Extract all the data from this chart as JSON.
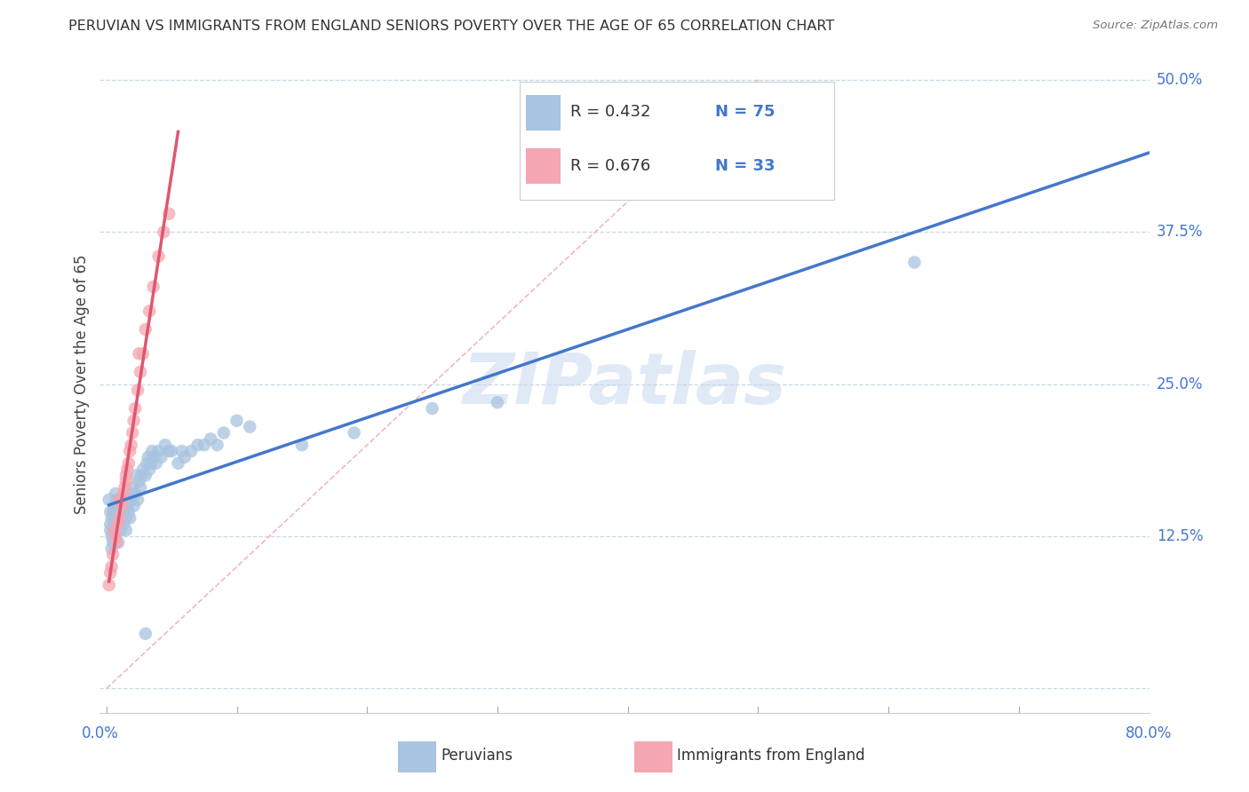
{
  "title": "PERUVIAN VS IMMIGRANTS FROM ENGLAND SENIORS POVERTY OVER THE AGE OF 65 CORRELATION CHART",
  "source": "Source: ZipAtlas.com",
  "ylabel": "Seniors Poverty Over the Age of 65",
  "xlim": [
    0.0,
    0.8
  ],
  "ylim": [
    -0.02,
    0.52
  ],
  "yticks": [
    0.0,
    0.125,
    0.25,
    0.375,
    0.5
  ],
  "ytick_labels": [
    "",
    "12.5%",
    "25.0%",
    "37.5%",
    "50.0%"
  ],
  "peruvian_color": "#a8c4e0",
  "england_color": "#f4a7b0",
  "peruvian_line_color": "#4477cc",
  "england_line_color": "#e05570",
  "diagonal_color": "#f0b0b8",
  "R_peruvian": 0.432,
  "N_peruvian": 75,
  "R_england": 0.676,
  "N_england": 33,
  "watermark": "ZIPatlas",
  "legend_peruvians": "Peruvians",
  "legend_england": "Immigrants from England",
  "peruvian_x": [
    0.002,
    0.003,
    0.003,
    0.003,
    0.004,
    0.004,
    0.004,
    0.005,
    0.005,
    0.005,
    0.006,
    0.006,
    0.007,
    0.007,
    0.007,
    0.008,
    0.008,
    0.008,
    0.009,
    0.009,
    0.01,
    0.01,
    0.011,
    0.011,
    0.012,
    0.012,
    0.013,
    0.013,
    0.014,
    0.015,
    0.015,
    0.016,
    0.017,
    0.018,
    0.018,
    0.019,
    0.02,
    0.021,
    0.022,
    0.023,
    0.024,
    0.025,
    0.026,
    0.027,
    0.028,
    0.03,
    0.031,
    0.032,
    0.033,
    0.034,
    0.035,
    0.036,
    0.038,
    0.04,
    0.042,
    0.045,
    0.048,
    0.05,
    0.055,
    0.058,
    0.06,
    0.065,
    0.07,
    0.075,
    0.08,
    0.085,
    0.09,
    0.1,
    0.11,
    0.15,
    0.19,
    0.25,
    0.3,
    0.62,
    0.03
  ],
  "peruvian_y": [
    0.155,
    0.135,
    0.145,
    0.13,
    0.14,
    0.125,
    0.115,
    0.13,
    0.12,
    0.145,
    0.135,
    0.15,
    0.14,
    0.125,
    0.16,
    0.145,
    0.135,
    0.155,
    0.12,
    0.14,
    0.155,
    0.135,
    0.145,
    0.13,
    0.15,
    0.14,
    0.145,
    0.135,
    0.155,
    0.14,
    0.13,
    0.15,
    0.145,
    0.16,
    0.14,
    0.155,
    0.165,
    0.15,
    0.16,
    0.175,
    0.155,
    0.17,
    0.165,
    0.175,
    0.18,
    0.175,
    0.185,
    0.19,
    0.18,
    0.185,
    0.195,
    0.19,
    0.185,
    0.195,
    0.19,
    0.2,
    0.195,
    0.195,
    0.185,
    0.195,
    0.19,
    0.195,
    0.2,
    0.2,
    0.205,
    0.2,
    0.21,
    0.22,
    0.215,
    0.2,
    0.21,
    0.23,
    0.235,
    0.35,
    0.045
  ],
  "england_x": [
    0.002,
    0.003,
    0.004,
    0.005,
    0.006,
    0.007,
    0.008,
    0.009,
    0.01,
    0.011,
    0.012,
    0.013,
    0.014,
    0.015,
    0.016,
    0.017,
    0.018,
    0.019,
    0.02,
    0.021,
    0.022,
    0.024,
    0.026,
    0.028,
    0.03,
    0.033,
    0.036,
    0.04,
    0.044,
    0.048,
    0.01,
    0.015,
    0.025
  ],
  "england_y": [
    0.085,
    0.095,
    0.1,
    0.11,
    0.13,
    0.125,
    0.12,
    0.135,
    0.14,
    0.155,
    0.15,
    0.16,
    0.165,
    0.17,
    0.18,
    0.185,
    0.195,
    0.2,
    0.21,
    0.22,
    0.23,
    0.245,
    0.26,
    0.275,
    0.295,
    0.31,
    0.33,
    0.355,
    0.375,
    0.39,
    0.155,
    0.175,
    0.275
  ]
}
